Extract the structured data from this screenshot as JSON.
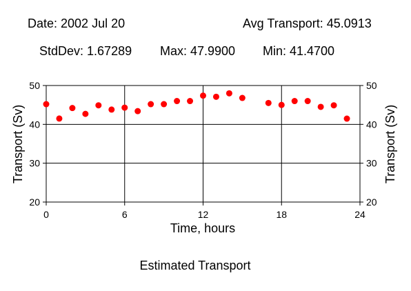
{
  "header": {
    "date": "Date: 2002 Jul 20",
    "avg": "Avg Transport: 45.0913",
    "stddev": "StdDev: 1.67289",
    "max": "Max: 47.9900",
    "min": "Min: 41.4700"
  },
  "chart_data": {
    "type": "scatter",
    "title": "Estimated Transport",
    "xlabel": "Time, hours",
    "ylabel": "Transport (Sv)",
    "xlim": [
      0,
      24
    ],
    "ylim": [
      20,
      50
    ],
    "xticks": [
      0,
      6,
      12,
      18,
      24
    ],
    "yticks": [
      20,
      30,
      40,
      50
    ],
    "grid": "vertical and horizontal lines at major ticks",
    "marker_color": "#ff0000",
    "series": [
      {
        "x": [
          0,
          1,
          2,
          3,
          4,
          5,
          6,
          7,
          8,
          9,
          10,
          11,
          12,
          13,
          14,
          15,
          17,
          18,
          19,
          20,
          21,
          22,
          23
        ],
        "y": [
          45.2,
          41.5,
          44.2,
          42.7,
          44.9,
          43.8,
          44.3,
          43.4,
          45.2,
          45.2,
          46.0,
          46.0,
          47.4,
          47.1,
          47.99,
          46.8,
          45.5,
          45.0,
          46.0,
          46.0,
          44.5,
          44.9,
          41.47
        ]
      }
    ]
  }
}
